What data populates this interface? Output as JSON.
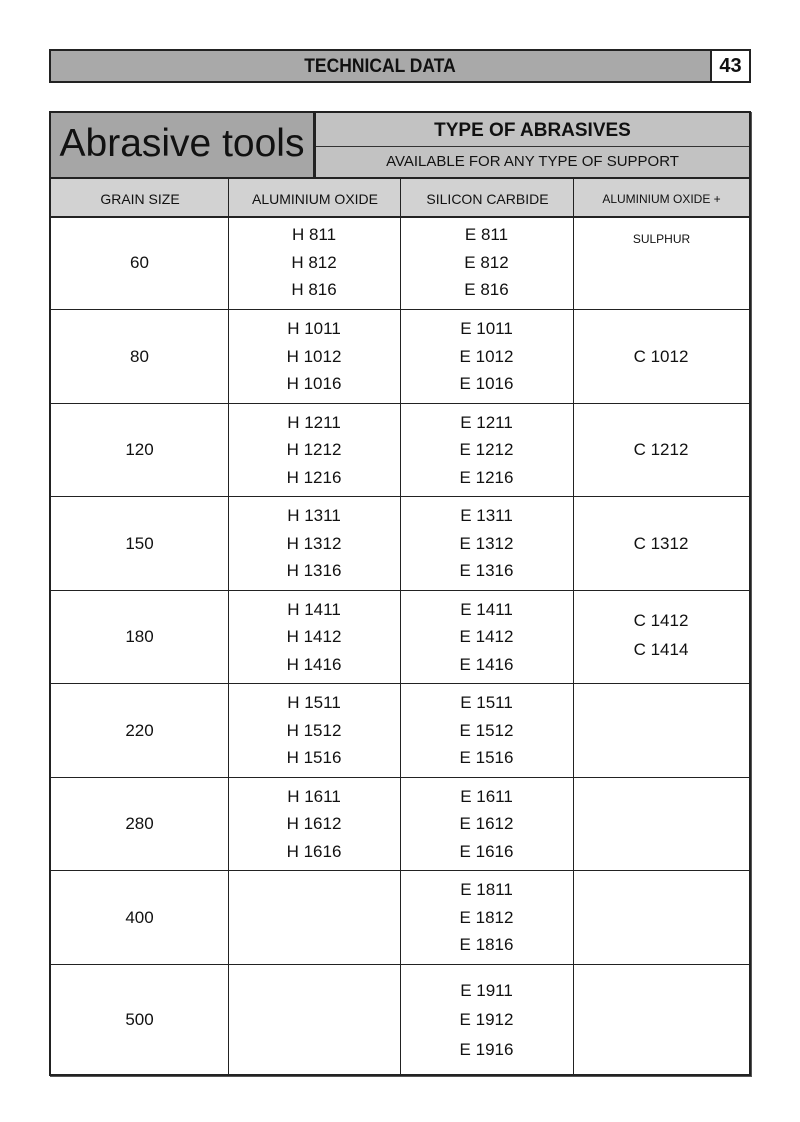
{
  "header": {
    "title": "TECHNICAL DATA",
    "page_number": "43"
  },
  "table": {
    "title": "Abrasive tools",
    "type_heading": "TYPE OF ABRASIVES",
    "type_subheading": "AVAILABLE FOR ANY TYPE OF SUPPORT",
    "columns": [
      "GRAIN SIZE",
      "ALUMINIUM OXIDE",
      "SILICON CARBIDE",
      "ALUMINIUM OXIDE + SULPHUR"
    ],
    "rows": [
      {
        "grain": "60",
        "aluminium_oxide": [
          "H 811",
          "H 812",
          "H 816"
        ],
        "silicon_carbide": [
          "E 811",
          "E 812",
          "E 816"
        ],
        "al_oxide_sulphur": []
      },
      {
        "grain": "80",
        "aluminium_oxide": [
          "H 1011",
          "H 1012",
          "H 1016"
        ],
        "silicon_carbide": [
          "E 1011",
          "E 1012",
          "E 1016"
        ],
        "al_oxide_sulphur": [
          "C 1012"
        ]
      },
      {
        "grain": "120",
        "aluminium_oxide": [
          "H 1211",
          "H 1212",
          "H 1216"
        ],
        "silicon_carbide": [
          "E 1211",
          "E 1212",
          "E 1216"
        ],
        "al_oxide_sulphur": [
          "C 1212"
        ]
      },
      {
        "grain": "150",
        "aluminium_oxide": [
          "H 1311",
          "H 1312",
          "H 1316"
        ],
        "silicon_carbide": [
          "E 1311",
          "E 1312",
          "E 1316"
        ],
        "al_oxide_sulphur": [
          "C 1312"
        ]
      },
      {
        "grain": "180",
        "aluminium_oxide": [
          "H 1411",
          "H 1412",
          "H 1416"
        ],
        "silicon_carbide": [
          "E 1411",
          "E 1412",
          "E 1416"
        ],
        "al_oxide_sulphur": [
          "C 1412",
          "C 1414"
        ]
      },
      {
        "grain": "220",
        "aluminium_oxide": [
          "H 1511",
          "H 1512",
          "H 1516"
        ],
        "silicon_carbide": [
          "E 1511",
          "E 1512",
          "E 1516"
        ],
        "al_oxide_sulphur": []
      },
      {
        "grain": "280",
        "aluminium_oxide": [
          "H 1611",
          "H 1612",
          "H 1616"
        ],
        "silicon_carbide": [
          "E 1611",
          "E 1612",
          "E 1616"
        ],
        "al_oxide_sulphur": []
      },
      {
        "grain": "400",
        "aluminium_oxide": [],
        "silicon_carbide": [
          "E 1811",
          "E 1812",
          "E 1816"
        ],
        "al_oxide_sulphur": []
      },
      {
        "grain": "500",
        "aluminium_oxide": [],
        "silicon_carbide": [
          "E 1911",
          "E 1912",
          "E 1916"
        ],
        "al_oxide_sulphur": []
      }
    ]
  }
}
